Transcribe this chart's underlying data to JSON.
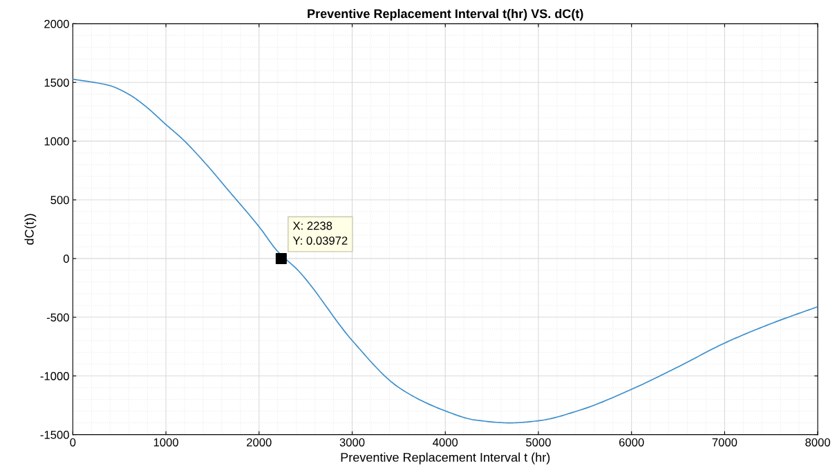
{
  "chart_data": {
    "type": "line",
    "title": "Preventive Replacement Interval t(hr) VS. dC(t)",
    "xlabel": "Preventive Replacement Interval t (hr)",
    "ylabel": "dC(t))",
    "series": [
      {
        "color": "#3d8fcc",
        "x": [
          0,
          393,
          605,
          764,
          1005,
          1188,
          1427,
          1666,
          2005,
          2196,
          2424,
          3000,
          3500,
          4000,
          4318,
          4697,
          5000,
          5455,
          6000,
          6500,
          7000,
          7500,
          8000
        ],
        "values": [
          1528,
          1474,
          1397,
          1308,
          1138,
          1010,
          808,
          585,
          266,
          64,
          -105,
          -698,
          -1098,
          -1298,
          -1375,
          -1400,
          -1382,
          -1289,
          -1114,
          -923,
          -720,
          -554,
          -410
        ]
      },
      {
        "type": "scatter",
        "color": "#000000",
        "marker": "square",
        "x": [
          2238
        ],
        "values": [
          0.03972
        ]
      }
    ],
    "annotations": [
      {
        "text": "X: 2238\nY: 0.03972",
        "x": 2238,
        "y": 0.03972
      }
    ],
    "xlim": [
      0,
      8000
    ],
    "xticks": [
      0,
      1000,
      2000,
      3000,
      4000,
      5000,
      6000,
      7000,
      8000
    ],
    "ylim": [
      -1500,
      2000
    ],
    "yticks": [
      -1500,
      -1000,
      -500,
      0,
      500,
      1000,
      1500,
      2000
    ],
    "grid": true,
    "legend": false
  }
}
